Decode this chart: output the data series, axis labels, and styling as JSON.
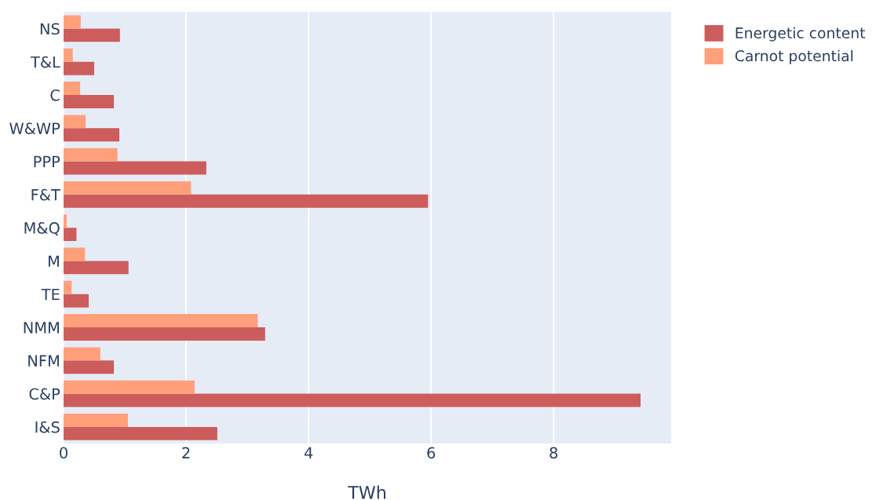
{
  "chart_data": {
    "type": "bar",
    "orientation": "horizontal",
    "categories": [
      "NS",
      "T&L",
      "C",
      "W&WP",
      "PPP",
      "F&T",
      "M&Q",
      "M",
      "TE",
      "NMM",
      "NFM",
      "C&P",
      "I&S"
    ],
    "series": [
      {
        "name": "Energetic content",
        "color": "#cd5c5c",
        "values": [
          0.92,
          0.5,
          0.82,
          0.91,
          2.33,
          5.95,
          0.21,
          1.06,
          0.41,
          3.29,
          0.82,
          9.42,
          2.51
        ]
      },
      {
        "name": "Carnot potential",
        "color": "#ffa07a",
        "values": [
          0.28,
          0.15,
          0.27,
          0.36,
          0.88,
          2.08,
          0.05,
          0.35,
          0.13,
          3.17,
          0.6,
          2.14,
          1.05
        ]
      }
    ],
    "xlabel": "TWh",
    "xlim": [
      0,
      9.92
    ],
    "xticks": [
      0,
      2,
      4,
      6,
      8
    ],
    "grid": "x",
    "legend": "top right"
  }
}
